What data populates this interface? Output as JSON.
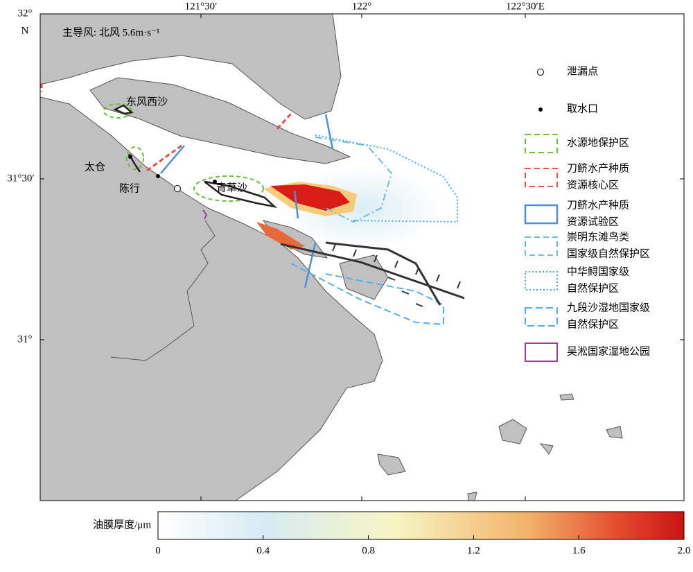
{
  "map": {
    "annotation": "主导风: 北风 5.6m·s⁻¹",
    "top_labels": [
      "121°30′",
      "122°",
      "122°30′E"
    ],
    "left_labels": [
      "32°",
      "N",
      "31°30′",
      "31°"
    ],
    "place_names": [
      "东风西沙",
      "太仓",
      "陈行",
      "青草沙"
    ],
    "legend": [
      {
        "lines": [
          "泄漏点"
        ]
      },
      {
        "lines": [
          "取水口"
        ]
      },
      {
        "lines": [
          "水源地保护区"
        ]
      },
      {
        "lines": [
          "刀鲚水产种质",
          "资源核心区"
        ]
      },
      {
        "lines": [
          "刀鲚水产种质",
          "资源试验区"
        ]
      },
      {
        "lines": [
          "崇明东滩鸟类",
          "国家级自然保护区"
        ]
      },
      {
        "lines": [
          "中华鲟国家级",
          "自然保护区"
        ]
      },
      {
        "lines": [
          "九段沙湿地国家级",
          "自然保护区"
        ]
      },
      {
        "lines": [
          "吴淞国家湿地公园"
        ]
      }
    ]
  },
  "colorbar": {
    "label": "油膜厚度/μm",
    "lim": [
      0,
      2
    ],
    "ticks": [
      0,
      0.4,
      0.8,
      1.2,
      1.6,
      {
        "value": 2,
        "label": "2.0"
      }
    ]
  }
}
